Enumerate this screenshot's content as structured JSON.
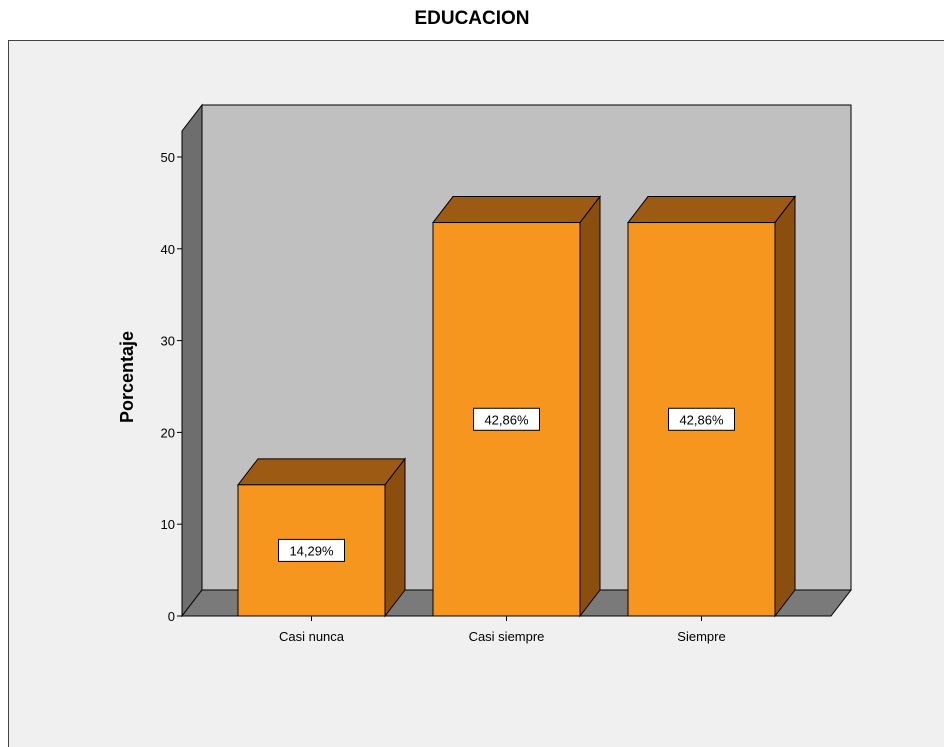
{
  "chart_data": {
    "type": "bar",
    "title": "EDUCACION",
    "xlabel": "",
    "ylabel": "Porcentaje",
    "categories": [
      "Casi nunca",
      "Casi siempre",
      "Siempre"
    ],
    "values": [
      14.29,
      42.86,
      42.86
    ],
    "data_labels": [
      "14,29%",
      "42,86%",
      "42,86%"
    ],
    "ylim": [
      0,
      50
    ],
    "yticks": [
      "0",
      "10",
      "20",
      "30",
      "40",
      "50"
    ],
    "style": "3d",
    "grid": false,
    "colors": {
      "bar_front": "#f7961f",
      "bar_top": "#9c5a13",
      "bar_side": "#8a4e0f",
      "back_wall": "#c0c0c0",
      "side_wall": "#6e6e6e",
      "floor": "#7a7a7a",
      "outer_background": "#f0f0f0"
    }
  }
}
